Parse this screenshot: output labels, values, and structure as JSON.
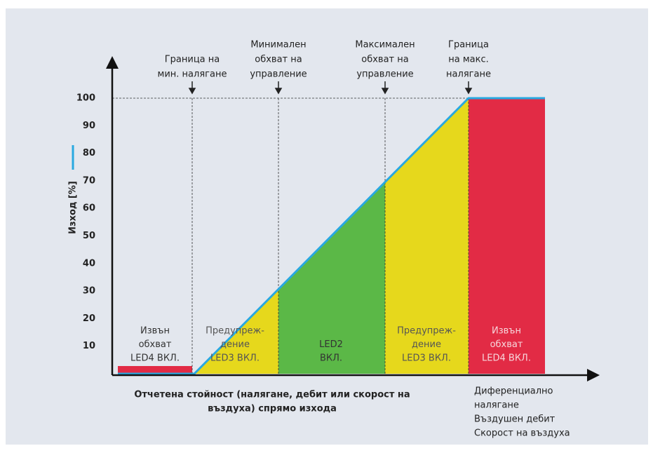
{
  "annotations": [
    [
      "Граница на",
      "мин. налягане"
    ],
    [
      "Минимален",
      "обхват на",
      "управление"
    ],
    [
      "Максимален",
      "обхват на",
      "управление"
    ],
    [
      "Граница",
      "на макс.",
      "налягане"
    ]
  ],
  "y_axis": {
    "label": "Изход [%]",
    "ticks": [
      10,
      20,
      30,
      40,
      50,
      60,
      70,
      80,
      90,
      100
    ]
  },
  "zones": [
    [
      "Извън",
      "обхват",
      "LED4 ВКЛ."
    ],
    [
      "Предупреж-",
      "дение",
      "LED3 ВКЛ."
    ],
    [
      "LED2",
      "ВКЛ."
    ],
    [
      "Предупреж-",
      "дение",
      "LED3 ВКЛ."
    ],
    [
      "Извън",
      "обхват",
      "LED4 ВКЛ."
    ]
  ],
  "x_axis": {
    "label": [
      "Отчетена стойност (налягане, дебит или скорост на",
      "въздуха) спрямо изхода"
    ],
    "notes": [
      "Диференциално",
      "налягане",
      "Въздушен дебит",
      "Скорост на въздуха"
    ]
  }
}
